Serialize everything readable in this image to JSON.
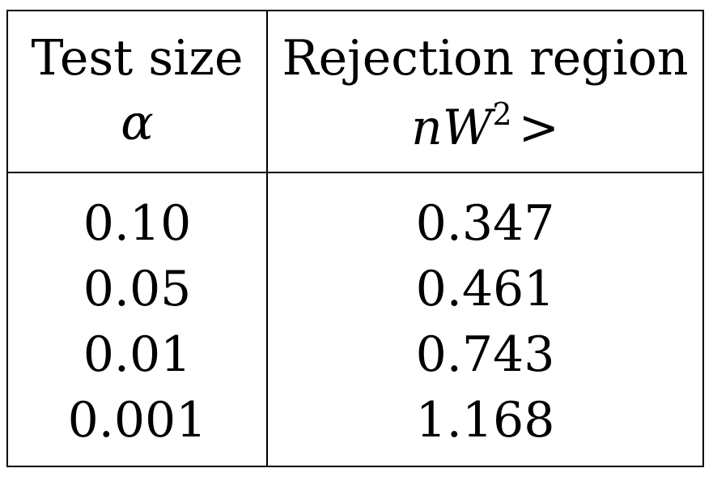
{
  "table": {
    "headers": [
      {
        "line1": "Test size",
        "line2": "α"
      },
      {
        "line1": "Rejection region",
        "line2_var": "nW",
        "line2_sup": "2",
        "line2_op": ">"
      }
    ],
    "rows": [
      {
        "test_size": "0.10",
        "rejection": "0.347"
      },
      {
        "test_size": "0.05",
        "rejection": "0.461"
      },
      {
        "test_size": "0.01",
        "rejection": "0.743"
      },
      {
        "test_size": "0.001",
        "rejection": "1.168"
      }
    ]
  }
}
